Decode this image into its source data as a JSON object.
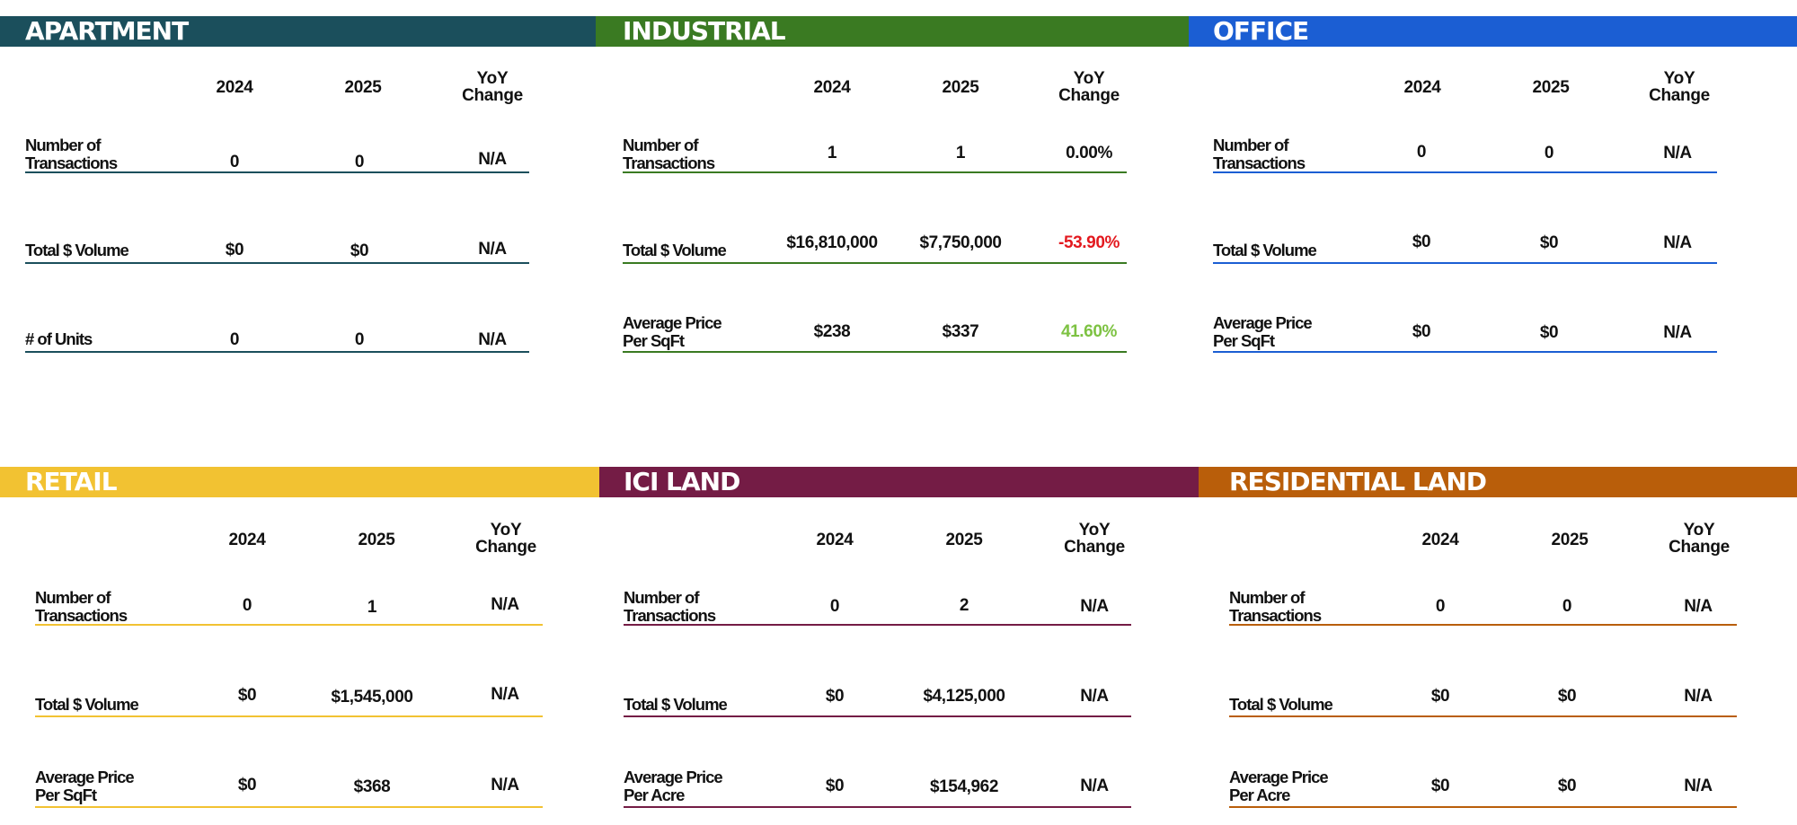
{
  "columns": {
    "y2024": "2024",
    "y2025": "2025",
    "yoy_line1": "YoY",
    "yoy_line2": "Change"
  },
  "colors": {
    "negative": "#e3191f",
    "positive": "#7dc242",
    "apartment": "#1b4f5c",
    "industrial": "#3a7a22",
    "office": "#1b5ed3",
    "retail": "#f2c232",
    "ici_land": "#741c45",
    "residential_land": "#b95e0a"
  },
  "panels": [
    {
      "title": "APARTMENT",
      "rows": [
        {
          "label_line1": "Number of",
          "label_line2": "Transactions",
          "v2024": "0",
          "v2025": "0",
          "yoy": "N/A"
        },
        {
          "label_line1": "",
          "label_line2": "Total $ Volume",
          "v2024": "$0",
          "v2025": "$0",
          "yoy": "N/A"
        },
        {
          "label_line1": "",
          "label_line2": "# of Units",
          "v2024": "0",
          "v2025": "0",
          "yoy": "N/A"
        }
      ]
    },
    {
      "title": "INDUSTRIAL",
      "rows": [
        {
          "label_line1": "Number of",
          "label_line2": "Transactions",
          "v2024": "1",
          "v2025": "1",
          "yoy": "0.00%"
        },
        {
          "label_line1": "",
          "label_line2": "Total $ Volume",
          "v2024": "$16,810,000",
          "v2025": "$7,750,000",
          "yoy": "-53.90%"
        },
        {
          "label_line1": "Average Price",
          "label_line2": "Per SqFt",
          "v2024": "$238",
          "v2025": "$337",
          "yoy": "41.60%"
        }
      ]
    },
    {
      "title": "OFFICE",
      "rows": [
        {
          "label_line1": "Number of",
          "label_line2": "Transactions",
          "v2024": "0",
          "v2025": "0",
          "yoy": "N/A"
        },
        {
          "label_line1": "",
          "label_line2": "Total $ Volume",
          "v2024": "$0",
          "v2025": "$0",
          "yoy": "N/A"
        },
        {
          "label_line1": "Average Price",
          "label_line2": "Per SqFt",
          "v2024": "$0",
          "v2025": "$0",
          "yoy": "N/A"
        }
      ]
    },
    {
      "title": "RETAIL",
      "rows": [
        {
          "label_line1": "Number of",
          "label_line2": "Transactions",
          "v2024": "0",
          "v2025": "1",
          "yoy": "N/A"
        },
        {
          "label_line1": "",
          "label_line2": "Total $ Volume",
          "v2024": "$0",
          "v2025": "$1,545,000",
          "yoy": "N/A"
        },
        {
          "label_line1": "Average Price",
          "label_line2": "Per SqFt",
          "v2024": "$0",
          "v2025": "$368",
          "yoy": "N/A"
        }
      ]
    },
    {
      "title": "ICI LAND",
      "rows": [
        {
          "label_line1": "Number of",
          "label_line2": "Transactions",
          "v2024": "0",
          "v2025": "2",
          "yoy": "N/A"
        },
        {
          "label_line1": "",
          "label_line2": "Total $ Volume",
          "v2024": "$0",
          "v2025": "$4,125,000",
          "yoy": "N/A"
        },
        {
          "label_line1": "Average Price",
          "label_line2": "Per Acre",
          "v2024": "$0",
          "v2025": "$154,962",
          "yoy": "N/A"
        }
      ]
    },
    {
      "title": "RESIDENTIAL LAND",
      "rows": [
        {
          "label_line1": "Number of",
          "label_line2": "Transactions",
          "v2024": "0",
          "v2025": "0",
          "yoy": "N/A"
        },
        {
          "label_line1": "",
          "label_line2": "Total $ Volume",
          "v2024": "$0",
          "v2025": "$0",
          "yoy": "N/A"
        },
        {
          "label_line1": "Average Price",
          "label_line2": "Per Acre",
          "v2024": "$0",
          "v2025": "$0",
          "yoy": "N/A"
        }
      ]
    }
  ]
}
